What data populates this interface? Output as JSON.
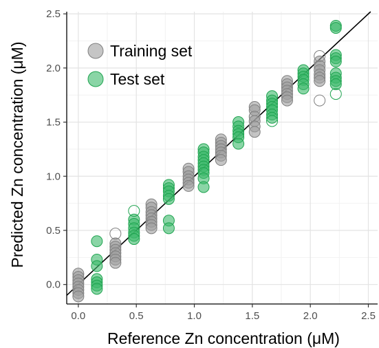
{
  "chart_data": {
    "type": "scatter",
    "title": "",
    "xlabel": "Reference Zn concentration (μM)",
    "ylabel": "Predicted Zn concentration (μM)",
    "xlim": [
      -0.1,
      2.58
    ],
    "ylim": [
      -0.18,
      2.52
    ],
    "x_ticks": [
      0.0,
      0.5,
      1.0,
      1.5,
      2.0,
      2.5
    ],
    "y_ticks": [
      0.0,
      0.5,
      1.0,
      1.5,
      2.0,
      2.5
    ],
    "x_tick_labels": [
      "0.0",
      "0.5",
      "1.0",
      "1.5",
      "2.0",
      "2.5"
    ],
    "y_tick_labels": [
      "0.0",
      "0.5",
      "1.0",
      "1.5",
      "2.0",
      "2.5"
    ],
    "grid": true,
    "reference_line": "y = x",
    "legend_position": "top-left",
    "series": [
      {
        "name": "Training set",
        "color": "#9e9e9e",
        "edge_color": "#7f7f7f",
        "points": [
          [
            0.0,
            0.1
          ],
          [
            0.0,
            0.07
          ],
          [
            0.0,
            0.04
          ],
          [
            0.0,
            0.01
          ],
          [
            0.0,
            -0.02
          ],
          [
            0.0,
            -0.05
          ],
          [
            0.0,
            -0.08
          ],
          [
            0.0,
            -0.11
          ],
          [
            0.32,
            0.38
          ],
          [
            0.32,
            0.35
          ],
          [
            0.32,
            0.32
          ],
          [
            0.32,
            0.29
          ],
          [
            0.32,
            0.26
          ],
          [
            0.32,
            0.23
          ],
          [
            0.32,
            0.2
          ],
          [
            0.63,
            0.74
          ],
          [
            0.63,
            0.71
          ],
          [
            0.63,
            0.67
          ],
          [
            0.63,
            0.64
          ],
          [
            0.63,
            0.61
          ],
          [
            0.63,
            0.58
          ],
          [
            0.63,
            0.55
          ],
          [
            0.63,
            0.52
          ],
          [
            0.95,
            1.07
          ],
          [
            0.95,
            1.04
          ],
          [
            0.95,
            1.0
          ],
          [
            0.95,
            0.97
          ],
          [
            0.95,
            0.94
          ],
          [
            0.95,
            0.91
          ],
          [
            1.23,
            1.34
          ],
          [
            1.23,
            1.31
          ],
          [
            1.23,
            1.28
          ],
          [
            1.23,
            1.25
          ],
          [
            1.23,
            1.22
          ],
          [
            1.23,
            1.19
          ],
          [
            1.23,
            1.15
          ],
          [
            1.52,
            1.64
          ],
          [
            1.52,
            1.61
          ],
          [
            1.52,
            1.55
          ],
          [
            1.52,
            1.51
          ],
          [
            1.52,
            1.46
          ],
          [
            1.52,
            1.41
          ],
          [
            1.8,
            1.88
          ],
          [
            1.8,
            1.85
          ],
          [
            1.8,
            1.82
          ],
          [
            1.8,
            1.79
          ],
          [
            1.8,
            1.76
          ],
          [
            1.8,
            1.73
          ],
          [
            1.8,
            1.7
          ],
          [
            2.08,
            2.06
          ],
          [
            2.08,
            2.02
          ],
          [
            2.08,
            1.98
          ],
          [
            2.08,
            1.94
          ],
          [
            2.08,
            1.91
          ],
          [
            2.08,
            1.88
          ]
        ],
        "open_points": [
          [
            0.32,
            0.47
          ],
          [
            2.08,
            2.11
          ],
          [
            2.08,
            1.7
          ]
        ]
      },
      {
        "name": "Test set",
        "color": "#3cb96a",
        "edge_color": "#1ea34f",
        "points": [
          [
            0.16,
            0.4
          ],
          [
            0.16,
            0.23
          ],
          [
            0.16,
            0.17
          ],
          [
            0.16,
            0.05
          ],
          [
            0.16,
            0.02
          ],
          [
            0.16,
            -0.01
          ],
          [
            0.16,
            -0.04
          ],
          [
            0.48,
            0.6
          ],
          [
            0.48,
            0.56
          ],
          [
            0.48,
            0.52
          ],
          [
            0.48,
            0.48
          ],
          [
            0.48,
            0.45
          ],
          [
            0.48,
            0.42
          ],
          [
            0.78,
            0.92
          ],
          [
            0.78,
            0.89
          ],
          [
            0.78,
            0.86
          ],
          [
            0.78,
            0.82
          ],
          [
            0.78,
            0.79
          ],
          [
            0.78,
            0.59
          ],
          [
            0.78,
            0.52
          ],
          [
            1.08,
            1.25
          ],
          [
            1.08,
            1.22
          ],
          [
            1.08,
            1.18
          ],
          [
            1.08,
            1.15
          ],
          [
            1.08,
            1.12
          ],
          [
            1.08,
            1.09
          ],
          [
            1.08,
            1.06
          ],
          [
            1.08,
            1.03
          ],
          [
            1.08,
            0.98
          ],
          [
            1.08,
            0.9
          ],
          [
            1.38,
            1.5
          ],
          [
            1.38,
            1.46
          ],
          [
            1.38,
            1.42
          ],
          [
            1.38,
            1.39
          ],
          [
            1.38,
            1.36
          ],
          [
            1.38,
            1.3
          ],
          [
            1.67,
            1.74
          ],
          [
            1.67,
            1.7
          ],
          [
            1.67,
            1.67
          ],
          [
            1.67,
            1.64
          ],
          [
            1.67,
            1.61
          ],
          [
            1.67,
            1.57
          ],
          [
            1.67,
            1.54
          ],
          [
            1.94,
            1.98
          ],
          [
            1.94,
            1.95
          ],
          [
            1.94,
            1.92
          ],
          [
            1.94,
            1.89
          ],
          [
            1.94,
            1.85
          ],
          [
            1.94,
            1.81
          ],
          [
            2.22,
            2.39
          ],
          [
            2.22,
            2.37
          ],
          [
            2.22,
            2.12
          ],
          [
            2.22,
            2.09
          ],
          [
            2.22,
            2.06
          ],
          [
            2.22,
            1.95
          ],
          [
            2.22,
            1.91
          ],
          [
            2.22,
            1.88
          ],
          [
            2.22,
            1.85
          ]
        ],
        "open_points": [
          [
            0.48,
            0.68
          ],
          [
            1.67,
            1.51
          ],
          [
            2.22,
            1.76
          ]
        ]
      }
    ]
  }
}
